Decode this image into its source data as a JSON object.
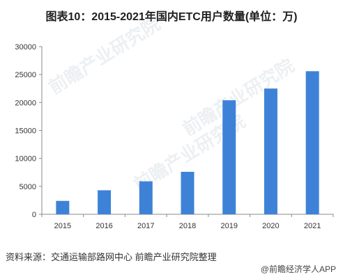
{
  "chart_data": {
    "type": "bar",
    "title": "图表10：2015-2021年国内ETC用户数量(单位：万)",
    "categories": [
      "2015",
      "2016",
      "2017",
      "2018",
      "2019",
      "2020",
      "2021"
    ],
    "values": [
      2400,
      4300,
      5900,
      7600,
      20400,
      22500,
      25600
    ],
    "ylim": [
      0,
      30000
    ],
    "yticks": [
      0,
      5000,
      10000,
      15000,
      20000,
      25000,
      30000
    ],
    "grid": false,
    "color": "#3e82d8"
  },
  "source": "资料来源：交通运输部路网中心 前瞻产业研究院整理",
  "brand": "@前瞻经济学人APP",
  "watermark": "前瞻产业研究院"
}
